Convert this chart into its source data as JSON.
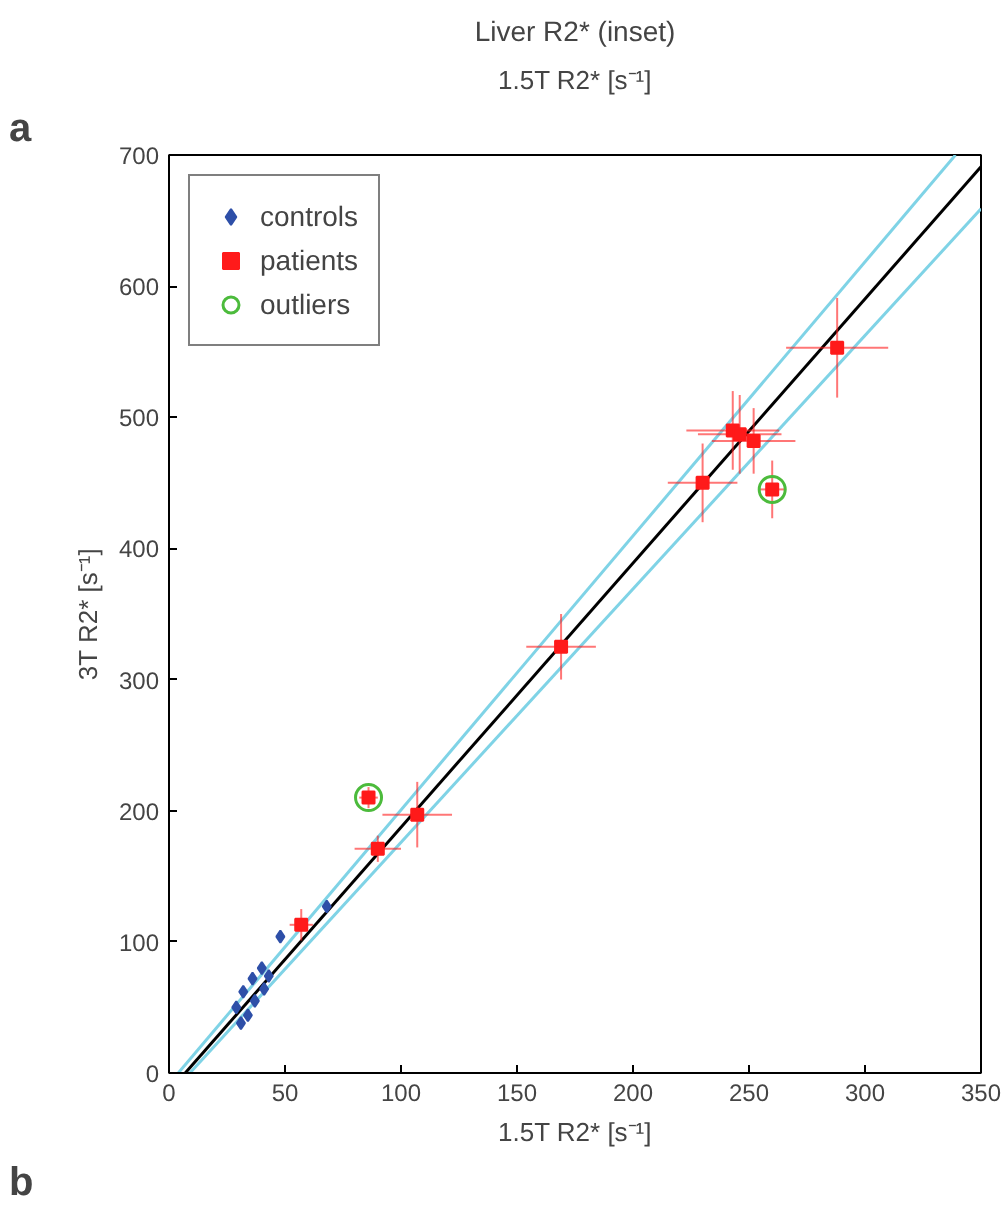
{
  "chart_data": {
    "type": "scatter",
    "title": "Liver R2* (inset)",
    "xlabel": "1.5T R2* [s⁻¹]",
    "ylabel": "3T R2* [s⁻¹]",
    "annotations": [
      "a",
      "1.5T R2* [s⁻¹]",
      "b"
    ],
    "xlim": [
      0,
      350
    ],
    "ylim": [
      0,
      700
    ],
    "xticks": [
      0,
      50,
      100,
      150,
      200,
      250,
      300,
      350
    ],
    "yticks": [
      0,
      100,
      200,
      300,
      400,
      500,
      600,
      700
    ],
    "grid": false,
    "legend": "top left",
    "series": [
      {
        "type": "line",
        "color": "#7fd3e6",
        "x": [
          4,
          339
        ],
        "values": [
          0,
          700
        ],
        "line_style": "solid"
      },
      {
        "type": "line",
        "color": "#7fd3e6",
        "x": [
          9,
          350
        ],
        "values": [
          0,
          659
        ],
        "line_style": "solid"
      },
      {
        "type": "line",
        "color": "#000000",
        "x": [
          7,
          350
        ],
        "values": [
          0,
          691
        ],
        "line_style": "solid"
      },
      {
        "name": "controls",
        "color": "#2e4fa8",
        "marker": "diamond",
        "x": [
          29,
          32,
          34,
          36,
          37,
          40,
          41,
          43,
          31,
          48,
          68
        ],
        "values": [
          50,
          62,
          44,
          72,
          55,
          80,
          64,
          74,
          38,
          104,
          127
        ]
      },
      {
        "name": "patients",
        "color": "#ff1a1a",
        "marker": "square",
        "x": [
          288,
          243,
          246,
          252,
          230,
          260,
          169,
          86,
          90,
          107,
          57
        ],
        "values": [
          553,
          490,
          487,
          482,
          450,
          445,
          325,
          210,
          171,
          197,
          113
        ],
        "xerrors": [
          22,
          20,
          18,
          18,
          15,
          6,
          15,
          4,
          10,
          15,
          5
        ],
        "errors": [
          38,
          30,
          30,
          25,
          30,
          22,
          25,
          8,
          10,
          25,
          12
        ]
      },
      {
        "name": "outliers",
        "color": "#4cbb3c",
        "marker": "circle",
        "x": [
          86,
          260
        ],
        "values": [
          210,
          445
        ]
      }
    ]
  }
}
